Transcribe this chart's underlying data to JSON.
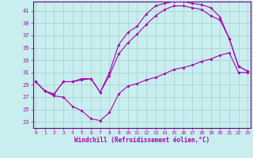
{
  "xlabel": "Windchill (Refroidissement éolien,°C)",
  "bg_color": "#c8eef0",
  "grid_color": "#aacccc",
  "line_color": "#aa00aa",
  "xlim": [
    -0.3,
    23.3
  ],
  "ylim": [
    22.0,
    42.5
  ],
  "xticks": [
    0,
    1,
    2,
    3,
    4,
    5,
    6,
    7,
    8,
    9,
    10,
    11,
    12,
    13,
    14,
    15,
    16,
    17,
    18,
    19,
    20,
    21,
    22,
    23
  ],
  "yticks": [
    23,
    25,
    27,
    29,
    31,
    33,
    35,
    37,
    39,
    41
  ],
  "line1_x": [
    0,
    1,
    2,
    3,
    4,
    5,
    6,
    7,
    8,
    9,
    10,
    11,
    12,
    13,
    14,
    15,
    16,
    17,
    18,
    19,
    20,
    21,
    22,
    23
  ],
  "line1_y": [
    29.5,
    28.0,
    27.2,
    27.0,
    25.5,
    24.8,
    23.5,
    23.2,
    24.5,
    27.5,
    28.8,
    29.2,
    29.8,
    30.2,
    30.8,
    31.5,
    31.8,
    32.2,
    32.8,
    33.2,
    33.8,
    34.2,
    31.0,
    31.0
  ],
  "line2_x": [
    0,
    1,
    2,
    3,
    4,
    5,
    6,
    7,
    8,
    9,
    10,
    11,
    12,
    13,
    14,
    15,
    16,
    17,
    18,
    19,
    20,
    21,
    22,
    23
  ],
  "line2_y": [
    29.5,
    28.0,
    27.5,
    29.5,
    29.5,
    29.8,
    30.0,
    27.8,
    30.5,
    34.0,
    35.8,
    37.2,
    38.8,
    40.2,
    41.2,
    41.8,
    41.8,
    41.5,
    41.2,
    40.2,
    39.5,
    36.5,
    32.0,
    31.2
  ],
  "line3_x": [
    0,
    1,
    2,
    3,
    4,
    5,
    6,
    7,
    8,
    9,
    10,
    11,
    12,
    13,
    14,
    15,
    16,
    17,
    18,
    19,
    20,
    21,
    22,
    23
  ],
  "line3_y": [
    29.5,
    28.0,
    27.5,
    29.5,
    29.5,
    30.0,
    30.0,
    27.8,
    31.0,
    35.5,
    37.5,
    38.5,
    40.5,
    41.8,
    42.2,
    42.5,
    42.5,
    42.2,
    42.0,
    41.5,
    40.0,
    36.5,
    32.0,
    31.2
  ]
}
